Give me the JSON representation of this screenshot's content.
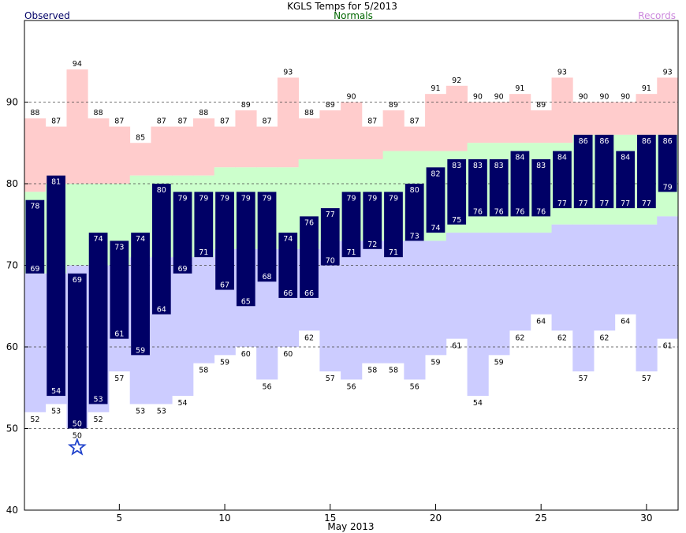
{
  "chart_data": {
    "type": "bar",
    "title": "KGLS Temps for 5/2013",
    "xlabel": "May 2013",
    "ylabel": "",
    "legend": {
      "observed": "Observed",
      "normals": "Normals",
      "records": "Records"
    },
    "ylim": [
      40,
      100
    ],
    "yticks": [
      40,
      50,
      60,
      70,
      80,
      90
    ],
    "xticks": [
      5,
      10,
      15,
      20,
      25,
      30
    ],
    "days": [
      1,
      2,
      3,
      4,
      5,
      6,
      7,
      8,
      9,
      10,
      11,
      12,
      13,
      14,
      15,
      16,
      17,
      18,
      19,
      20,
      21,
      22,
      23,
      24,
      25,
      26,
      27,
      28,
      29,
      30,
      31
    ],
    "observed_high": [
      78,
      81,
      69,
      74,
      73,
      74,
      80,
      79,
      79,
      79,
      79,
      79,
      74,
      76,
      77,
      79,
      79,
      79,
      80,
      82,
      83,
      83,
      83,
      84,
      83,
      84,
      86,
      86,
      84,
      86,
      86
    ],
    "observed_low": [
      69,
      54,
      50,
      53,
      61,
      59,
      64,
      69,
      71,
      67,
      65,
      68,
      66,
      66,
      70,
      71,
      72,
      71,
      73,
      74,
      75,
      76,
      76,
      76,
      76,
      77,
      77,
      77,
      77,
      77,
      79
    ],
    "normal_high": [
      79,
      80,
      80,
      80,
      80,
      81,
      81,
      81,
      81,
      82,
      82,
      82,
      82,
      83,
      83,
      83,
      83,
      84,
      84,
      84,
      84,
      85,
      85,
      85,
      85,
      85,
      86,
      86,
      86,
      86,
      86
    ],
    "normal_low": [
      69,
      69,
      70,
      70,
      70,
      71,
      71,
      71,
      71,
      72,
      72,
      72,
      72,
      72,
      73,
      73,
      73,
      73,
      73,
      73,
      74,
      74,
      74,
      74,
      74,
      75,
      75,
      75,
      75,
      75,
      76
    ],
    "record_high": [
      88,
      87,
      94,
      88,
      87,
      85,
      87,
      87,
      88,
      87,
      89,
      87,
      93,
      88,
      89,
      90,
      87,
      89,
      87,
      91,
      92,
      90,
      90,
      91,
      89,
      93,
      90,
      90,
      90,
      91,
      93
    ],
    "record_low": [
      52,
      53,
      50,
      52,
      57,
      53,
      53,
      54,
      58,
      59,
      60,
      56,
      60,
      62,
      57,
      56,
      58,
      58,
      56,
      59,
      61,
      54,
      59,
      62,
      64,
      62,
      57,
      62,
      64,
      57,
      61
    ],
    "record_marker_day": 3,
    "colors": {
      "observed": "#000066",
      "normals": "#ccffcc",
      "record_high": "#ffcccc",
      "record_low": "#ccccff",
      "normals_text": "#006600",
      "records_text": "#cc88dd",
      "star": "#2244cc"
    }
  }
}
